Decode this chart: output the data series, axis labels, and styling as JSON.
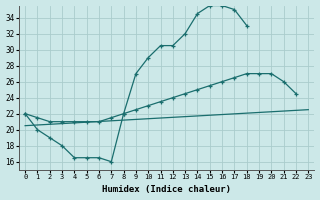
{
  "xlabel": "Humidex (Indice chaleur)",
  "bg_color": "#cce8e8",
  "grid_color": "#aacccc",
  "line_color": "#1a6e6e",
  "xlim": [
    -0.5,
    23.5
  ],
  "ylim": [
    15.0,
    35.5
  ],
  "xticks": [
    0,
    1,
    2,
    3,
    4,
    5,
    6,
    7,
    8,
    9,
    10,
    11,
    12,
    13,
    14,
    15,
    16,
    17,
    18,
    19,
    20,
    21,
    22,
    23
  ],
  "yticks": [
    16,
    18,
    20,
    22,
    24,
    26,
    28,
    30,
    32,
    34
  ],
  "line1_x": [
    0,
    1,
    2,
    3,
    4,
    5,
    6,
    7,
    8,
    9,
    10,
    11,
    12,
    13,
    14,
    15,
    16,
    17,
    18
  ],
  "line1_y": [
    22,
    20,
    19,
    18,
    16.5,
    16.5,
    16.5,
    16,
    22,
    27,
    29,
    30.5,
    30.5,
    32,
    34.5,
    35.5,
    35.5,
    35,
    33
  ],
  "line2_x": [
    0,
    1,
    2,
    3,
    4,
    5,
    6,
    7,
    8,
    9,
    10,
    11,
    12,
    13,
    14,
    15,
    16,
    17,
    18,
    19,
    20,
    21,
    22
  ],
  "line2_y": [
    22,
    21.5,
    21,
    21,
    21,
    21,
    21,
    21.5,
    22,
    22.5,
    23,
    23.5,
    24,
    24.5,
    25,
    25.5,
    26,
    26.5,
    27,
    27,
    27,
    26,
    24.5
  ],
  "line3_x": [
    0,
    23
  ],
  "line3_y": [
    20.5,
    22.5
  ]
}
